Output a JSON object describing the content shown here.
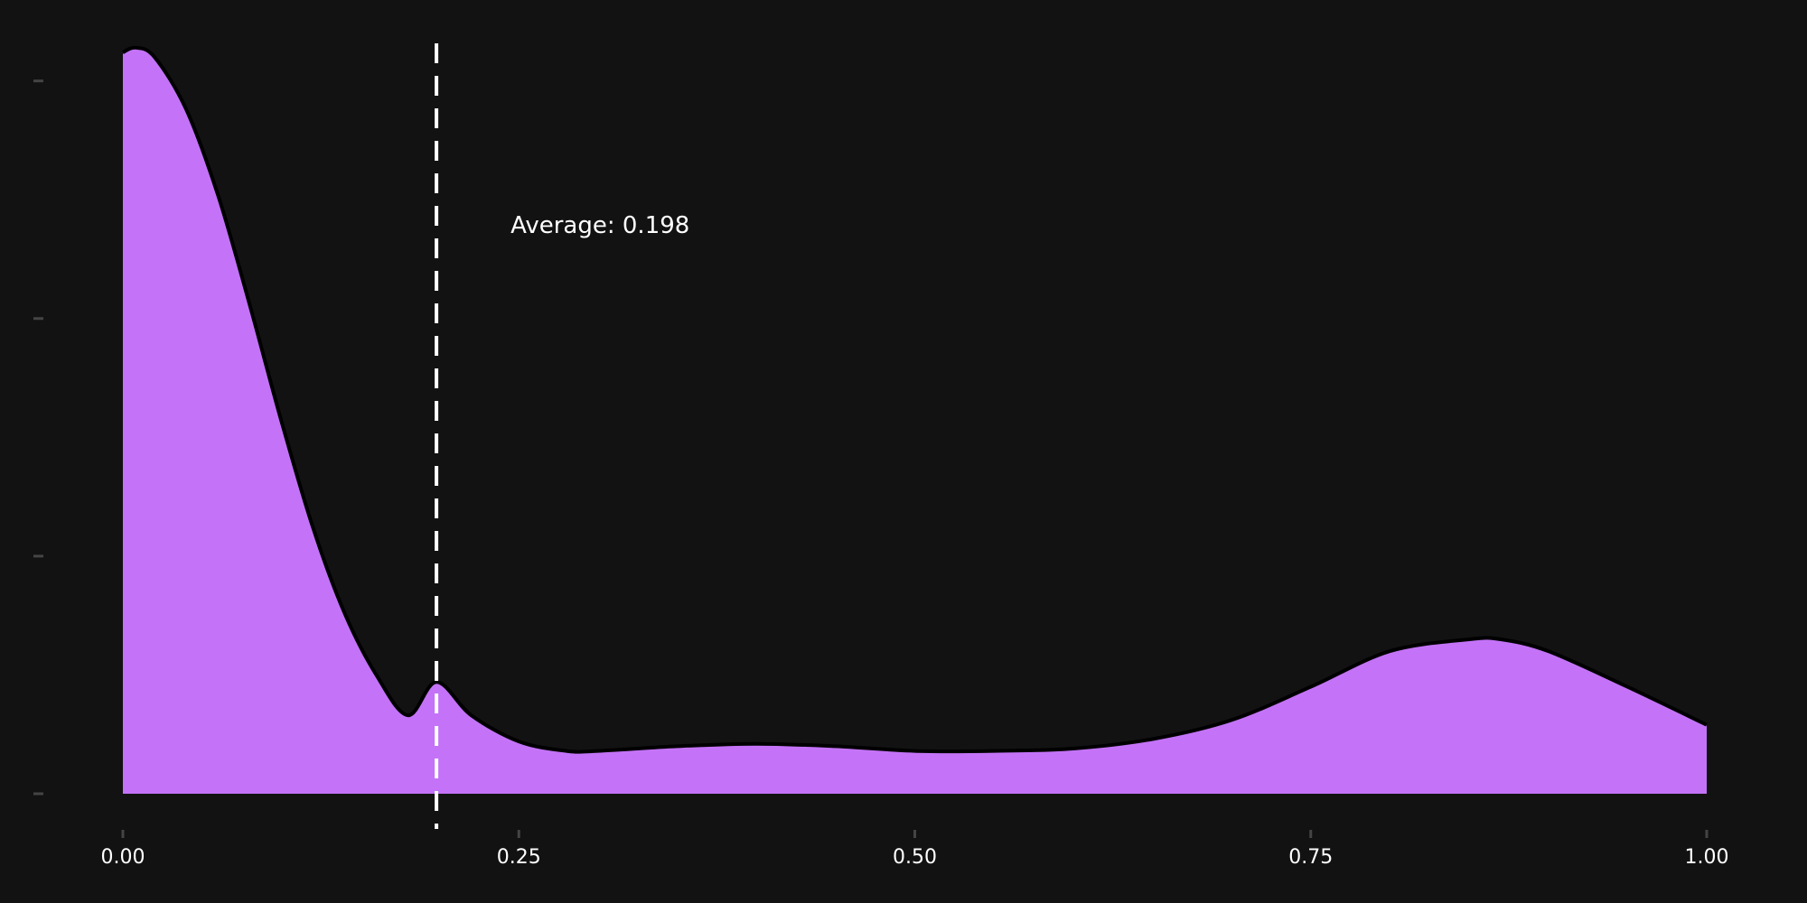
{
  "colors": {
    "background": "#121213",
    "fill": "#c473f8",
    "outline": "#000000",
    "mean_line": "#ffffff",
    "text": "#ffffff",
    "tick": "#444444"
  },
  "annotation": {
    "text": "Average: 0.198"
  },
  "chart_data": {
    "type": "area",
    "title": "",
    "xlabel": "",
    "ylabel": "",
    "xlim": [
      0,
      1
    ],
    "ylim": [
      0,
      3.2
    ],
    "x_ticks": [
      0,
      0.25,
      0.5,
      0.75,
      1.0
    ],
    "x_tick_labels": [
      "0.00",
      "0.25",
      "0.50",
      "0.75",
      "1.00"
    ],
    "y_ticks": [
      0,
      1,
      2,
      3
    ],
    "y_tick_labels": [
      "",
      "",
      "",
      ""
    ],
    "grid": false,
    "legend": "none",
    "mean": 0.198,
    "series": [
      {
        "x": [
          0,
          0.008,
          0.02,
          0.04,
          0.06,
          0.08,
          0.1,
          0.12,
          0.14,
          0.16,
          0.18,
          0.198,
          0.22,
          0.25,
          0.28,
          0.3,
          0.35,
          0.4,
          0.45,
          0.5,
          0.55,
          0.6,
          0.65,
          0.7,
          0.75,
          0.8,
          0.85,
          0.87,
          0.9,
          0.95,
          1.0
        ],
        "y": [
          3.12,
          3.14,
          3.1,
          2.88,
          2.52,
          2.06,
          1.57,
          1.12,
          0.76,
          0.5,
          0.33,
          0.47,
          0.33,
          0.22,
          0.18,
          0.18,
          0.2,
          0.21,
          0.2,
          0.18,
          0.18,
          0.19,
          0.23,
          0.31,
          0.45,
          0.6,
          0.65,
          0.65,
          0.6,
          0.45,
          0.29
        ]
      }
    ]
  }
}
